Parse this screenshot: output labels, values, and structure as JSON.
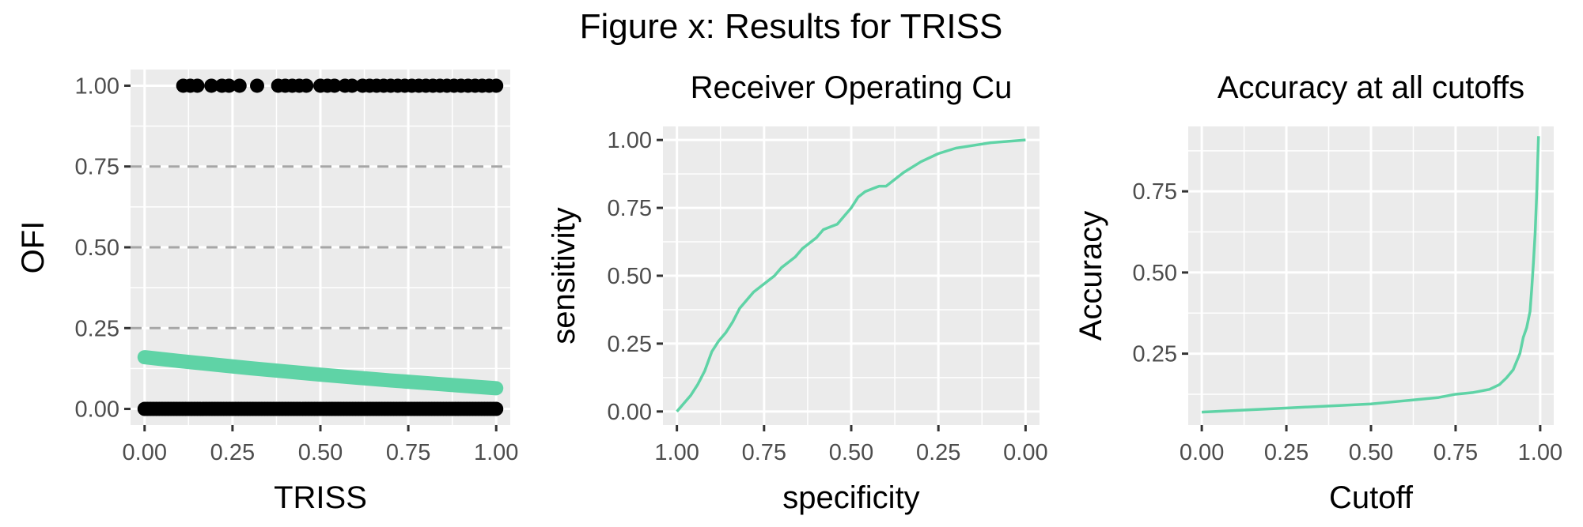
{
  "figure_title": "Figure x: Results for TRISS",
  "chart_data": [
    {
      "id": "triss",
      "type": "scatter",
      "title": "",
      "xlabel": "TRISS",
      "ylabel": "OFI",
      "xlim": [
        -0.04,
        1.04
      ],
      "ylim": [
        -0.05,
        1.05
      ],
      "xticks": [
        0,
        0.25,
        0.5,
        0.75,
        1
      ],
      "xtick_labels": [
        "0.00",
        "0.25",
        "0.50",
        "0.75",
        "1.00"
      ],
      "yticks": [
        0,
        0.25,
        0.5,
        0.75,
        1
      ],
      "ytick_labels": [
        "0.00",
        "0.25",
        "0.50",
        "0.75",
        "1.00"
      ],
      "hlines": [
        0.25,
        0.5,
        0.75
      ],
      "hline_style": "dashed",
      "points_y1_x": [
        0.11,
        0.13,
        0.15,
        0.19,
        0.22,
        0.24,
        0.27,
        0.32,
        0.38,
        0.4,
        0.42,
        0.44,
        0.46,
        0.5,
        0.52,
        0.54,
        0.57,
        0.59,
        0.62,
        0.64,
        0.66,
        0.68,
        0.7,
        0.72,
        0.74,
        0.76,
        0.78,
        0.8,
        0.82,
        0.84,
        0.86,
        0.88,
        0.9,
        0.92,
        0.94,
        0.96,
        0.98,
        1.0
      ],
      "points_y0_x_dense_range": [
        0.0,
        1.0
      ],
      "point_color": "#000000",
      "fit": {
        "x": [
          0,
          0.1,
          0.2,
          0.3,
          0.4,
          0.5,
          0.6,
          0.7,
          0.8,
          0.9,
          1.0
        ],
        "y": [
          0.16,
          0.148,
          0.137,
          0.126,
          0.116,
          0.106,
          0.097,
          0.088,
          0.08,
          0.072,
          0.064
        ],
        "color": "#5fd3a6"
      }
    },
    {
      "id": "roc",
      "type": "line",
      "title": "Receiver Operating Cu",
      "xlabel": "specificity",
      "ylabel": "sensitivity",
      "xlim": [
        1.04,
        -0.04
      ],
      "ylim": [
        -0.05,
        1.05
      ],
      "xticks": [
        1,
        0.75,
        0.5,
        0.25,
        0
      ],
      "xtick_labels": [
        "1.00",
        "0.75",
        "0.50",
        "0.25",
        "0.00"
      ],
      "yticks": [
        0,
        0.25,
        0.5,
        0.75,
        1
      ],
      "ytick_labels": [
        "0.00",
        "0.25",
        "0.50",
        "0.75",
        "1.00"
      ],
      "series": [
        {
          "x": [
            1.0,
            0.98,
            0.96,
            0.94,
            0.92,
            0.9,
            0.88,
            0.86,
            0.84,
            0.82,
            0.8,
            0.78,
            0.76,
            0.74,
            0.72,
            0.7,
            0.68,
            0.66,
            0.64,
            0.62,
            0.6,
            0.58,
            0.56,
            0.54,
            0.52,
            0.5,
            0.48,
            0.46,
            0.44,
            0.42,
            0.4,
            0.38,
            0.35,
            0.3,
            0.25,
            0.2,
            0.15,
            0.1,
            0.05,
            0.0
          ],
          "y": [
            0.0,
            0.03,
            0.06,
            0.1,
            0.15,
            0.22,
            0.26,
            0.29,
            0.33,
            0.38,
            0.41,
            0.44,
            0.46,
            0.48,
            0.5,
            0.53,
            0.55,
            0.57,
            0.6,
            0.62,
            0.64,
            0.67,
            0.68,
            0.69,
            0.72,
            0.75,
            0.79,
            0.81,
            0.82,
            0.83,
            0.83,
            0.85,
            0.88,
            0.92,
            0.95,
            0.97,
            0.98,
            0.99,
            0.995,
            1.0
          ],
          "color": "#5fd3a6"
        }
      ]
    },
    {
      "id": "acc",
      "type": "line",
      "title": "Accuracy at all cutoffs",
      "xlabel": "Cutoff",
      "ylabel": "Accuracy",
      "xlim": [
        -0.04,
        1.04
      ],
      "ylim": [
        0.03,
        0.95
      ],
      "xticks": [
        0,
        0.25,
        0.5,
        0.75,
        1
      ],
      "xtick_labels": [
        "0.00",
        "0.25",
        "0.50",
        "0.75",
        "1.00"
      ],
      "yticks": [
        0.25,
        0.5,
        0.75
      ],
      "ytick_labels": [
        "0.25",
        "0.50",
        "0.75"
      ],
      "series": [
        {
          "x": [
            0.0,
            0.1,
            0.2,
            0.3,
            0.4,
            0.5,
            0.6,
            0.7,
            0.75,
            0.8,
            0.85,
            0.88,
            0.9,
            0.92,
            0.94,
            0.95,
            0.96,
            0.97,
            0.975,
            0.98,
            0.985,
            0.99,
            0.995
          ],
          "y": [
            0.07,
            0.075,
            0.08,
            0.085,
            0.09,
            0.095,
            0.105,
            0.115,
            0.125,
            0.13,
            0.14,
            0.155,
            0.175,
            0.2,
            0.25,
            0.3,
            0.33,
            0.38,
            0.45,
            0.53,
            0.62,
            0.75,
            0.92
          ],
          "color": "#5fd3a6"
        }
      ]
    }
  ]
}
